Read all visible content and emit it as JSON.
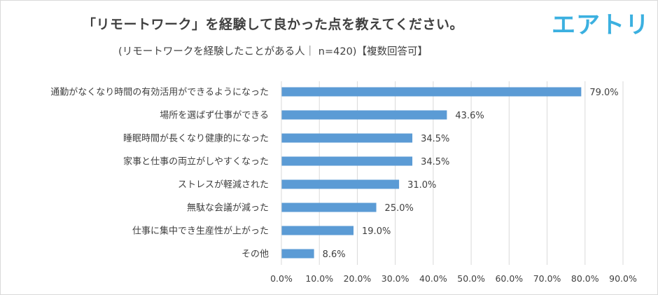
{
  "colors": {
    "bar": "#5b9bd5",
    "grid": "#d9d9d9",
    "text": "#404040",
    "logo": "#3bb0e0"
  },
  "logo_text": "エアトリ",
  "chart_data": {
    "type": "bar",
    "orientation": "horizontal",
    "title": "「リモートワーク」を経験して良かった点を教えてください。",
    "subtitle": "(リモートワークを経験したことがある人｜ n=420)【複数回答可】",
    "categories": [
      "通勤がなくなり時間の有効活用ができるようになった",
      "場所を選ばず仕事ができる",
      "睡眠時間が長くなり健康的になった",
      "家事と仕事の両立がしやすくなった",
      "ストレスが軽減された",
      "無駄な会議が減った",
      "仕事に集中でき生産性が上がった",
      "その他"
    ],
    "values": [
      79.0,
      43.6,
      34.5,
      34.5,
      31.0,
      25.0,
      19.0,
      8.6
    ],
    "value_labels": [
      "79.0%",
      "43.6%",
      "34.5%",
      "34.5%",
      "31.0%",
      "25.0%",
      "19.0%",
      "8.6%"
    ],
    "xlim": [
      0,
      90
    ],
    "xticks": [
      0,
      10,
      20,
      30,
      40,
      50,
      60,
      70,
      80,
      90
    ],
    "xtick_labels": [
      "0.0%",
      "10.0%",
      "20.0%",
      "30.0%",
      "40.0%",
      "50.0%",
      "60.0%",
      "70.0%",
      "80.0%",
      "90.0%"
    ],
    "grid": true,
    "legend": "none"
  }
}
